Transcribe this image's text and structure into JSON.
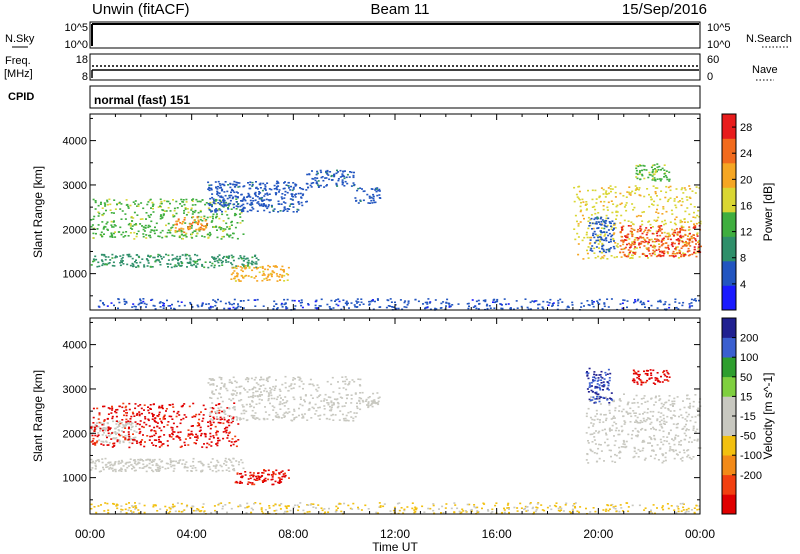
{
  "header": {
    "station": "Unwin (fitACF)",
    "beam": "Beam 11",
    "date": "15/Sep/2016"
  },
  "strips": {
    "nsky_label": "N.Sky",
    "nsky_ticks": [
      "10^5",
      "10^0"
    ],
    "nsearch_label": "N.Search",
    "nsearch_ticks": [
      "10^5",
      "10^0"
    ],
    "freq_label": "Freq.",
    "freq_unit": "[MHz]",
    "freq_ticks": [
      "18",
      "8"
    ],
    "nave_label": "Nave",
    "nave_ticks": [
      "60",
      "0"
    ],
    "cpid_label": "CPID",
    "cpid_value": "normal (fast) 151"
  },
  "colors": {
    "power_scale": [
      "#1a1aff",
      "#2255c0",
      "#2f8f6a",
      "#3fae3f",
      "#d9d633",
      "#f5a623",
      "#f26b1d",
      "#e81c1c"
    ],
    "velocity_scale": [
      "#e00000",
      "#f24010",
      "#f28a18",
      "#f2c010",
      "#c8c8c0",
      "#c8c8c0",
      "#7fcf3f",
      "#2e9e2e",
      "#3a5fd0",
      "#202090"
    ]
  },
  "chart_data": [
    {
      "type": "heatmap",
      "title": "Power",
      "ylabel": "Slant Range [km]",
      "xlabel": "",
      "xlim": [
        "00:00",
        "24:00"
      ],
      "ylim": [
        180,
        4600
      ],
      "y_ticks": [
        "1000",
        "2000",
        "3000",
        "4000"
      ],
      "colorbar_label": "Power [dB]",
      "colorbar_ticks": [
        "4",
        "8",
        "12",
        "16",
        "20",
        "24",
        "28"
      ],
      "colorbar_range": [
        0,
        30
      ],
      "regions": [
        {
          "t_start": 0.0,
          "t_end": 6.6,
          "r_start": 1150,
          "r_end": 1450,
          "value": 10
        },
        {
          "t_start": 0.0,
          "t_end": 6.0,
          "r_start": 1800,
          "r_end": 2700,
          "value": 14
        },
        {
          "t_start": 3.3,
          "t_end": 4.6,
          "r_start": 1950,
          "r_end": 2300,
          "value": 22
        },
        {
          "t_start": 5.5,
          "t_end": 7.8,
          "r_start": 850,
          "r_end": 1200,
          "value": 20
        },
        {
          "t_start": 4.6,
          "t_end": 8.5,
          "r_start": 2400,
          "r_end": 3100,
          "value": 6
        },
        {
          "t_start": 8.5,
          "t_end": 10.4,
          "r_start": 2950,
          "r_end": 3350,
          "value": 6
        },
        {
          "t_start": 10.4,
          "t_end": 11.4,
          "r_start": 2600,
          "r_end": 2950,
          "value": 6
        },
        {
          "t_start": 0.0,
          "t_end": 24.0,
          "r_start": 200,
          "r_end": 450,
          "value": 5
        },
        {
          "t_start": 19.0,
          "t_end": 24.0,
          "r_start": 1350,
          "r_end": 3000,
          "value": 18
        },
        {
          "t_start": 20.8,
          "t_end": 24.0,
          "r_start": 1400,
          "r_end": 2100,
          "value": 26
        },
        {
          "t_start": 19.6,
          "t_end": 20.6,
          "r_start": 1500,
          "r_end": 2300,
          "value": 6
        },
        {
          "t_start": 21.4,
          "t_end": 22.8,
          "r_start": 3100,
          "r_end": 3500,
          "value": 14
        }
      ]
    },
    {
      "type": "heatmap",
      "title": "Velocity",
      "ylabel": "Slant Range [km]",
      "xlabel": "Time UT",
      "xlim": [
        "00:00",
        "24:00"
      ],
      "ylim": [
        180,
        4600
      ],
      "y_ticks": [
        "1000",
        "2000",
        "3000",
        "4000"
      ],
      "x_ticks": [
        "00:00",
        "04:00",
        "08:00",
        "12:00",
        "16:00",
        "20:00",
        "00:00"
      ],
      "colorbar_label": "Velocity [m s^-1]",
      "colorbar_ticks": [
        "200",
        "100",
        "50",
        "15",
        "-15",
        "-50",
        "-100",
        "-200"
      ],
      "colorbar_range": [
        -250,
        250
      ],
      "regions": [
        {
          "t_start": 0.0,
          "t_end": 6.0,
          "r_start": 1150,
          "r_end": 1450,
          "value": 0
        },
        {
          "t_start": 0.0,
          "t_end": 1.8,
          "r_start": 1800,
          "r_end": 2300,
          "value": 0
        },
        {
          "t_start": 0.0,
          "t_end": 5.8,
          "r_start": 1700,
          "r_end": 2700,
          "value": -220
        },
        {
          "t_start": 5.6,
          "t_end": 7.8,
          "r_start": 850,
          "r_end": 1200,
          "value": -220
        },
        {
          "t_start": 4.6,
          "t_end": 10.6,
          "r_start": 2300,
          "r_end": 3300,
          "value": 0
        },
        {
          "t_start": 10.4,
          "t_end": 11.4,
          "r_start": 2600,
          "r_end": 2950,
          "value": 0
        },
        {
          "t_start": 0.0,
          "t_end": 24.0,
          "r_start": 200,
          "r_end": 450,
          "value": -60
        },
        {
          "t_start": 19.5,
          "t_end": 24.0,
          "r_start": 1350,
          "r_end": 2900,
          "value": 0
        },
        {
          "t_start": 19.5,
          "t_end": 20.5,
          "r_start": 2700,
          "r_end": 3500,
          "value": 200
        },
        {
          "t_start": 21.3,
          "t_end": 22.8,
          "r_start": 3100,
          "r_end": 3450,
          "value": -220
        }
      ]
    }
  ]
}
